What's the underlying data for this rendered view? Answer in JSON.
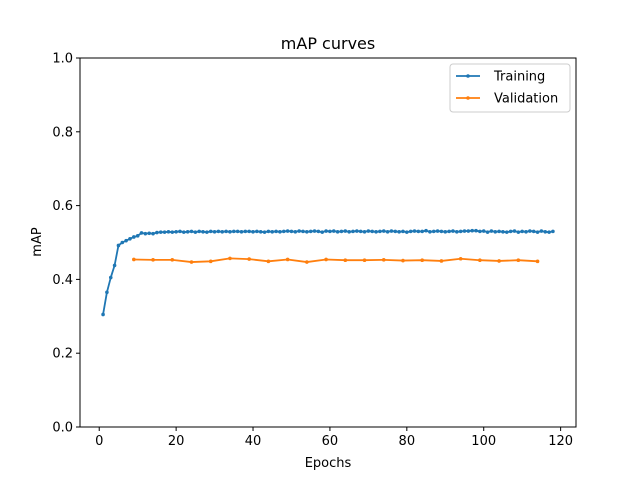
{
  "chart_data": {
    "type": "line",
    "title": "mAP curves",
    "xlabel": "Epochs",
    "ylabel": "mAP",
    "xlim": [
      -5,
      124
    ],
    "ylim": [
      0,
      1.0
    ],
    "xticks": [
      0,
      20,
      40,
      60,
      80,
      100,
      120
    ],
    "yticks": [
      0.0,
      0.2,
      0.4,
      0.6,
      0.8,
      1.0
    ],
    "grid": false,
    "legend_position": "top-right",
    "series": [
      {
        "name": "Training",
        "color": "#1f77b4",
        "x": [
          1,
          2,
          3,
          4,
          5,
          6,
          7,
          8,
          9,
          10,
          11,
          12,
          13,
          14,
          15,
          16,
          17,
          18,
          19,
          20,
          21,
          22,
          23,
          24,
          25,
          26,
          27,
          28,
          29,
          30,
          31,
          32,
          33,
          34,
          35,
          36,
          37,
          38,
          39,
          40,
          41,
          42,
          43,
          44,
          45,
          46,
          47,
          48,
          49,
          50,
          51,
          52,
          53,
          54,
          55,
          56,
          57,
          58,
          59,
          60,
          61,
          62,
          63,
          64,
          65,
          66,
          67,
          68,
          69,
          70,
          71,
          72,
          73,
          74,
          75,
          76,
          77,
          78,
          79,
          80,
          81,
          82,
          83,
          84,
          85,
          86,
          87,
          88,
          89,
          90,
          91,
          92,
          93,
          94,
          95,
          96,
          97,
          98,
          99,
          100,
          101,
          102,
          103,
          104,
          105,
          106,
          107,
          108,
          109,
          110,
          111,
          112,
          113,
          114,
          115,
          116,
          117,
          118
        ],
        "y": [
          0.305,
          0.365,
          0.405,
          0.438,
          0.492,
          0.5,
          0.505,
          0.51,
          0.515,
          0.518,
          0.526,
          0.524,
          0.525,
          0.524,
          0.527,
          0.528,
          0.528,
          0.529,
          0.528,
          0.529,
          0.53,
          0.528,
          0.529,
          0.53,
          0.528,
          0.53,
          0.529,
          0.528,
          0.53,
          0.529,
          0.53,
          0.529,
          0.53,
          0.529,
          0.53,
          0.53,
          0.529,
          0.53,
          0.53,
          0.529,
          0.53,
          0.529,
          0.528,
          0.53,
          0.529,
          0.53,
          0.529,
          0.53,
          0.531,
          0.53,
          0.529,
          0.531,
          0.53,
          0.529,
          0.53,
          0.531,
          0.53,
          0.528,
          0.531,
          0.53,
          0.531,
          0.529,
          0.53,
          0.531,
          0.529,
          0.53,
          0.531,
          0.53,
          0.529,
          0.531,
          0.53,
          0.529,
          0.53,
          0.531,
          0.529,
          0.531,
          0.53,
          0.529,
          0.53,
          0.528,
          0.53,
          0.531,
          0.53,
          0.53,
          0.532,
          0.529,
          0.53,
          0.531,
          0.53,
          0.529,
          0.53,
          0.531,
          0.529,
          0.53,
          0.531,
          0.531,
          0.532,
          0.532,
          0.53,
          0.531,
          0.528,
          0.531,
          0.529,
          0.53,
          0.529,
          0.528,
          0.53,
          0.531,
          0.528,
          0.53,
          0.529,
          0.531,
          0.53,
          0.528,
          0.531,
          0.529,
          0.528,
          0.53
        ]
      },
      {
        "name": "Validation",
        "color": "#ff7f0e",
        "x": [
          9,
          14,
          19,
          24,
          29,
          34,
          39,
          44,
          49,
          54,
          59,
          64,
          69,
          74,
          79,
          84,
          89,
          94,
          99,
          104,
          109,
          114
        ],
        "y": [
          0.454,
          0.453,
          0.453,
          0.447,
          0.449,
          0.457,
          0.455,
          0.449,
          0.454,
          0.447,
          0.454,
          0.452,
          0.452,
          0.453,
          0.451,
          0.452,
          0.45,
          0.456,
          0.452,
          0.45,
          0.452,
          0.449
        ]
      }
    ]
  }
}
